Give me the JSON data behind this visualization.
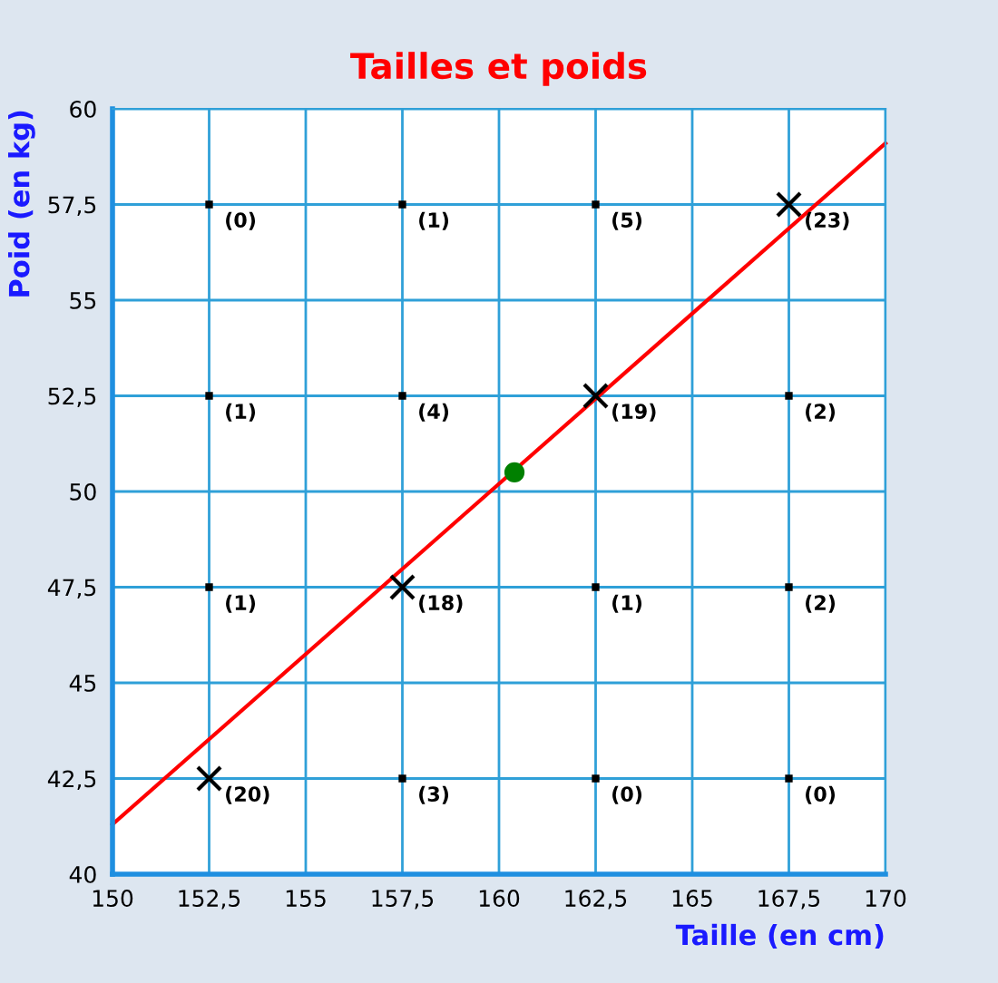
{
  "chart_data": {
    "type": "scatter",
    "title": "Tailles et poids",
    "xlabel": "Taille (en cm)",
    "ylabel": "Poid (en kg)",
    "xlim": [
      150,
      170
    ],
    "ylim": [
      40,
      60
    ],
    "xticks": [
      150,
      {
        "value": 152.5,
        "label": "152,5"
      },
      155,
      {
        "value": 157.5,
        "label": "157,5"
      },
      160,
      {
        "value": 162.5,
        "label": "162,5"
      },
      165,
      {
        "value": 167.5,
        "label": "167,5"
      },
      170
    ],
    "yticks": [
      40,
      {
        "value": 42.5,
        "label": "42,5"
      },
      45,
      {
        "value": 47.5,
        "label": "47,5"
      },
      50,
      {
        "value": 52.5,
        "label": "52,5"
      },
      55,
      {
        "value": 57.5,
        "label": "57,5"
      },
      60
    ],
    "grid": true,
    "legend": false,
    "annotations": [
      {
        "text": "(0)",
        "x": 152.5,
        "y": 57.5
      },
      {
        "text": "(1)",
        "x": 157.5,
        "y": 57.5
      },
      {
        "text": "(5)",
        "x": 162.5,
        "y": 57.5
      },
      {
        "text": "(23)",
        "x": 167.5,
        "y": 57.5
      },
      {
        "text": "(1)",
        "x": 152.5,
        "y": 52.5
      },
      {
        "text": "(4)",
        "x": 157.5,
        "y": 52.5
      },
      {
        "text": "(19)",
        "x": 162.5,
        "y": 52.5
      },
      {
        "text": "(2)",
        "x": 167.5,
        "y": 52.5
      },
      {
        "text": "(1)",
        "x": 152.5,
        "y": 47.5
      },
      {
        "text": "(18)",
        "x": 157.5,
        "y": 47.5
      },
      {
        "text": "(1)",
        "x": 162.5,
        "y": 47.5
      },
      {
        "text": "(2)",
        "x": 167.5,
        "y": 47.5
      },
      {
        "text": "(20)",
        "x": 152.5,
        "y": 42.5
      },
      {
        "text": "(3)",
        "x": 157.5,
        "y": 42.5
      },
      {
        "text": "(0)",
        "x": 162.5,
        "y": 42.5
      },
      {
        "text": "(0)",
        "x": 167.5,
        "y": 42.5
      }
    ],
    "series": [
      {
        "marker": "square",
        "color": "#000000",
        "x": [
          152.5,
          157.5,
          162.5,
          152.5,
          157.5,
          167.5,
          152.5,
          162.5,
          167.5,
          157.5,
          162.5,
          167.5
        ],
        "values": [
          57.5,
          57.5,
          57.5,
          52.5,
          52.5,
          52.5,
          47.5,
          47.5,
          47.5,
          42.5,
          42.5,
          42.5
        ]
      },
      {
        "marker": "cross",
        "color": "#000000",
        "x": [
          152.5,
          157.5,
          162.5,
          167.5
        ],
        "values": [
          42.5,
          47.5,
          52.5,
          57.5
        ]
      },
      {
        "type": "line",
        "marker": "none",
        "color": "#ff0000",
        "x": [
          150,
          170
        ],
        "values": [
          41.3,
          59.1
        ]
      },
      {
        "marker": "circle",
        "color": "#008000",
        "x": [
          160.4
        ],
        "values": [
          50.5
        ]
      }
    ]
  }
}
